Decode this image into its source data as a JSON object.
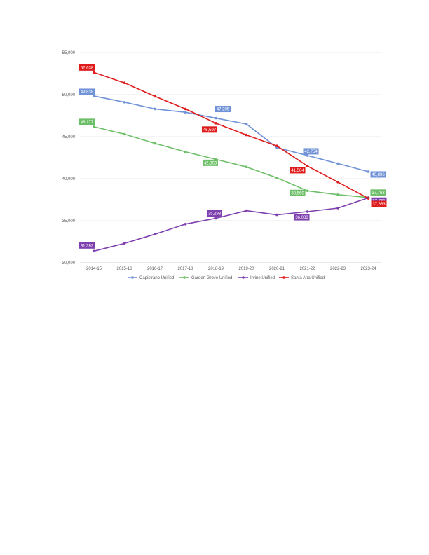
{
  "chart_data": {
    "type": "line",
    "title": "",
    "xlabel": "",
    "ylabel": "",
    "categories": [
      "2014-15",
      "2015-16",
      "2016-17",
      "2017-18",
      "2018-19",
      "2019-20",
      "2020-21",
      "2021-22",
      "2022-23",
      "2023-24"
    ],
    "y_ticks": [
      "30,000",
      "35,000",
      "40,000",
      "45,000",
      "50,000",
      "55,000"
    ],
    "ylim": [
      30000,
      55000
    ],
    "grid": true,
    "legend": "bottom",
    "series": [
      {
        "name": "Capistrano Unified",
        "color": "#7092D6",
        "values": [
          49838,
          49100,
          48300,
          47900,
          47205,
          46500,
          43700,
          42754,
          41800,
          40836
        ],
        "labels": [
          {
            "i": 0,
            "text": "49,838"
          },
          {
            "i": 4,
            "text": "47,205"
          },
          {
            "i": 7,
            "text": "42,754"
          },
          {
            "i": 9,
            "text": "40,836"
          }
        ]
      },
      {
        "name": "Garden Grove Unified",
        "color": "#6DBF67",
        "values": [
          46177,
          45300,
          44200,
          43200,
          42303,
          41400,
          40100,
          38560,
          38100,
          37763
        ],
        "labels": [
          {
            "i": 0,
            "text": "46,177"
          },
          {
            "i": 4,
            "text": "42,303"
          },
          {
            "i": 7,
            "text": "38,560"
          },
          {
            "i": 9,
            "text": "37,763"
          }
        ]
      },
      {
        "name": "Irvine Unified",
        "color": "#7E3FAF",
        "values": [
          31392,
          32300,
          33400,
          34600,
          35293,
          36200,
          35700,
          36083,
          36500,
          37731
        ],
        "labels": [
          {
            "i": 0,
            "text": "31,392"
          },
          {
            "i": 4,
            "text": "35,293"
          },
          {
            "i": 7,
            "text": "36,083"
          },
          {
            "i": 9,
            "text": "37,731"
          }
        ]
      },
      {
        "name": "Santa Ana Unified",
        "color": "#E01B1B",
        "values": [
          52638,
          51400,
          49800,
          48300,
          46597,
          45200,
          43900,
          41504,
          39600,
          37663
        ],
        "labels": [
          {
            "i": 0,
            "text": "52,638"
          },
          {
            "i": 4,
            "text": "46,597"
          },
          {
            "i": 7,
            "text": "41,504"
          },
          {
            "i": 9,
            "text": "37,663"
          }
        ]
      }
    ]
  }
}
